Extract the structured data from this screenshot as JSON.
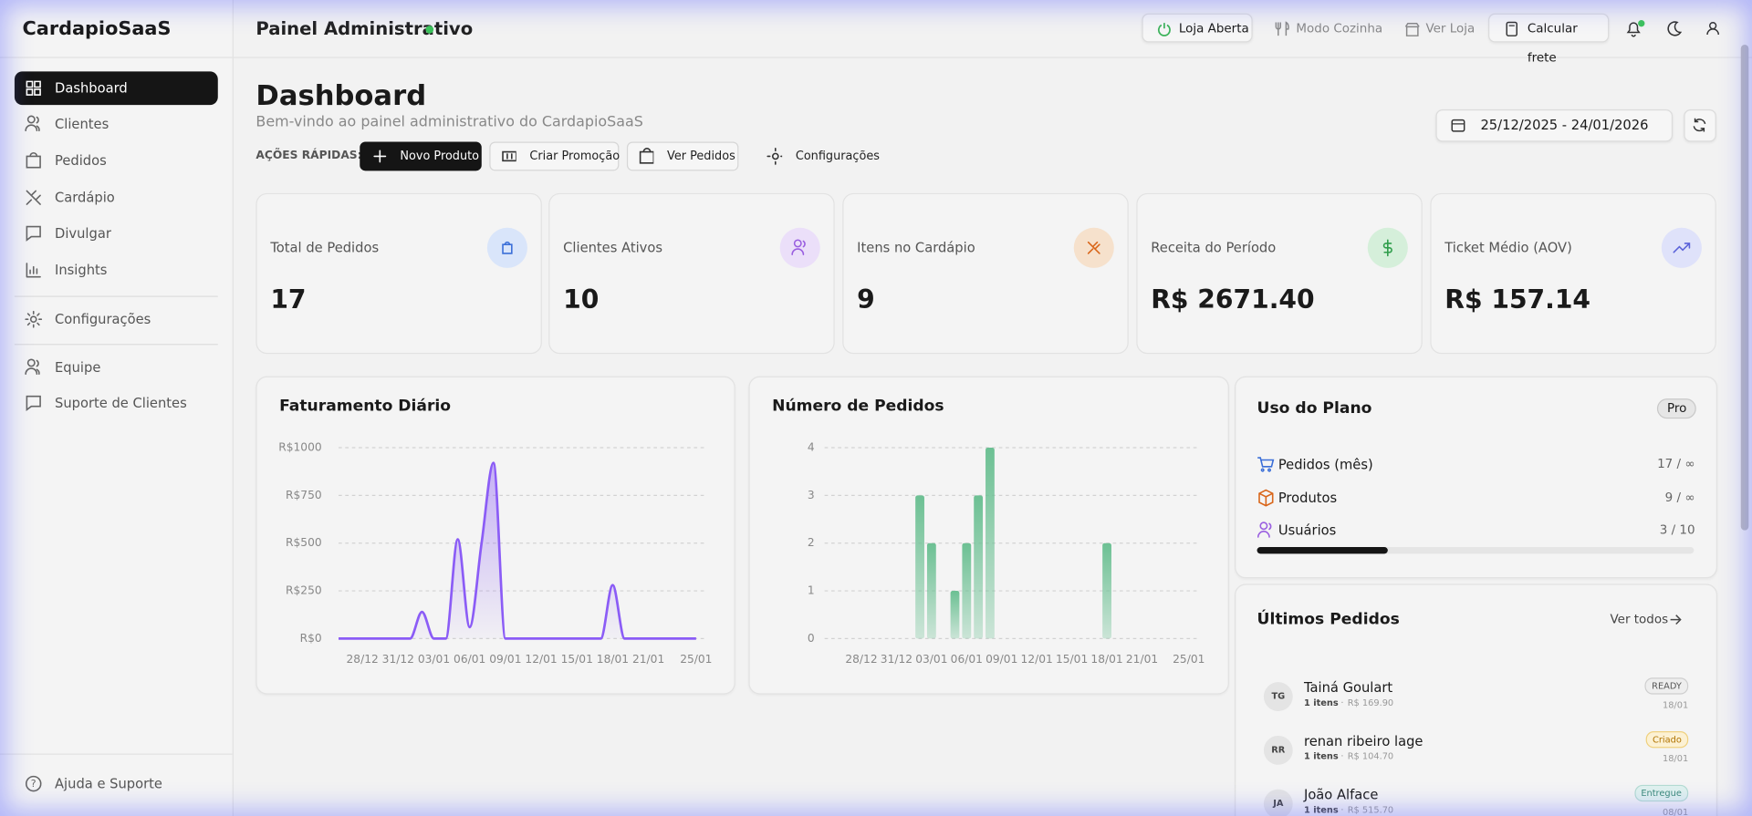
{
  "brand": "CardapioSaaS",
  "sidebar": {
    "items": [
      "Dashboard",
      "Clientes",
      "Pedidos",
      "Cardápio",
      "Divulgar",
      "Insights",
      "Configurações",
      "Equipe",
      "Suporte de Clientes"
    ],
    "footer": "Ajuda e Suporte"
  },
  "topbar": {
    "title": "Painel Administrativo",
    "buttons": [
      "Loja Aberta",
      "Modo Cozinha",
      "Ver Loja",
      "Calcular frete"
    ]
  },
  "page": {
    "title": "Dashboard",
    "subtitle": "Bem-vindo ao painel administrativo do CardapioSaaS",
    "date_range": "25/12/2025 - 24/01/2026",
    "quick_actions_label": "AÇÕES RÁPIDAS:",
    "quick_actions": [
      "Novo Produto",
      "Criar Promoção",
      "Ver Pedidos",
      "Configurações"
    ]
  },
  "kpis": [
    {
      "label": "Total de Pedidos",
      "value": "17"
    },
    {
      "label": "Clientes Ativos",
      "value": "10"
    },
    {
      "label": "Itens no Cardápio",
      "value": "9"
    },
    {
      "label": "Receita do Período",
      "value": "R$ 2671.40"
    },
    {
      "label": "Ticket Médio (AOV)",
      "value": "R$ 157.14"
    }
  ],
  "chart_data": [
    {
      "type": "line",
      "title": "Faturamento Diário",
      "categories": [
        null,
        null,
        "28/12",
        null,
        null,
        "31/12",
        null,
        null,
        "03/01",
        null,
        null,
        "06/01",
        null,
        null,
        "09/01",
        null,
        null,
        "12/01",
        null,
        null,
        "15/01",
        null,
        null,
        "18/01",
        null,
        null,
        "21/01",
        null,
        null,
        null,
        "25/01"
      ],
      "values": [
        0,
        0,
        0,
        0,
        0,
        0,
        0,
        140,
        0,
        0,
        520,
        60,
        500,
        920,
        0,
        0,
        0,
        0,
        0,
        0,
        0,
        0,
        0,
        280,
        0,
        0,
        0,
        0,
        0,
        0,
        0
      ],
      "color": "#8b5cf6",
      "ylim": [
        0,
        1000
      ],
      "yticks": [
        {
          "value": 0,
          "label": "R$0"
        },
        {
          "value": 250,
          "label": "R$250"
        },
        {
          "value": 500,
          "label": "R$500"
        },
        {
          "value": 750,
          "label": "R$750"
        },
        {
          "value": 1000,
          "label": "R$1000"
        }
      ],
      "grid": true
    },
    {
      "type": "bar",
      "title": "Número de Pedidos",
      "categories": [
        null,
        null,
        "28/12",
        null,
        null,
        "31/12",
        null,
        null,
        "03/01",
        null,
        null,
        "06/01",
        null,
        null,
        "09/01",
        null,
        null,
        "12/01",
        null,
        null,
        "15/01",
        null,
        null,
        "18/01",
        null,
        null,
        "21/01",
        null,
        null,
        null,
        "25/01"
      ],
      "values": [
        0,
        0,
        0,
        0,
        0,
        0,
        0,
        3,
        2,
        0,
        1,
        2,
        3,
        4,
        0,
        0,
        0,
        0,
        0,
        0,
        0,
        0,
        0,
        2,
        0,
        0,
        0,
        0,
        0,
        0,
        0
      ],
      "color": "#6cc093",
      "ylim": [
        0,
        4
      ],
      "yticks": [
        0,
        1,
        2,
        3,
        4
      ],
      "grid": true
    }
  ],
  "plan": {
    "title": "Uso do Plano",
    "badge": "Pro",
    "rows": [
      {
        "label": "Pedidos (mês)",
        "value": "17 / ∞"
      },
      {
        "label": "Produtos",
        "value": "9 / ∞"
      },
      {
        "label": "Usuários",
        "value": "3 / 10"
      }
    ]
  },
  "orders": {
    "title": "Últimos Pedidos",
    "link": "Ver todos",
    "items": [
      {
        "initials": "TG",
        "name": "Tainá Goulart",
        "items": "1 itens",
        "price": "R$ 169.90",
        "status": "READY",
        "date": "18/01"
      },
      {
        "initials": "RR",
        "name": "renan ribeiro lage",
        "items": "1 itens",
        "price": "R$ 104.70",
        "status": "Criado",
        "date": "18/01"
      },
      {
        "initials": "JA",
        "name": "João Alface",
        "items": "1 itens",
        "price": "R$ 515.70",
        "status": "Entregue",
        "date": "08/01"
      }
    ]
  }
}
